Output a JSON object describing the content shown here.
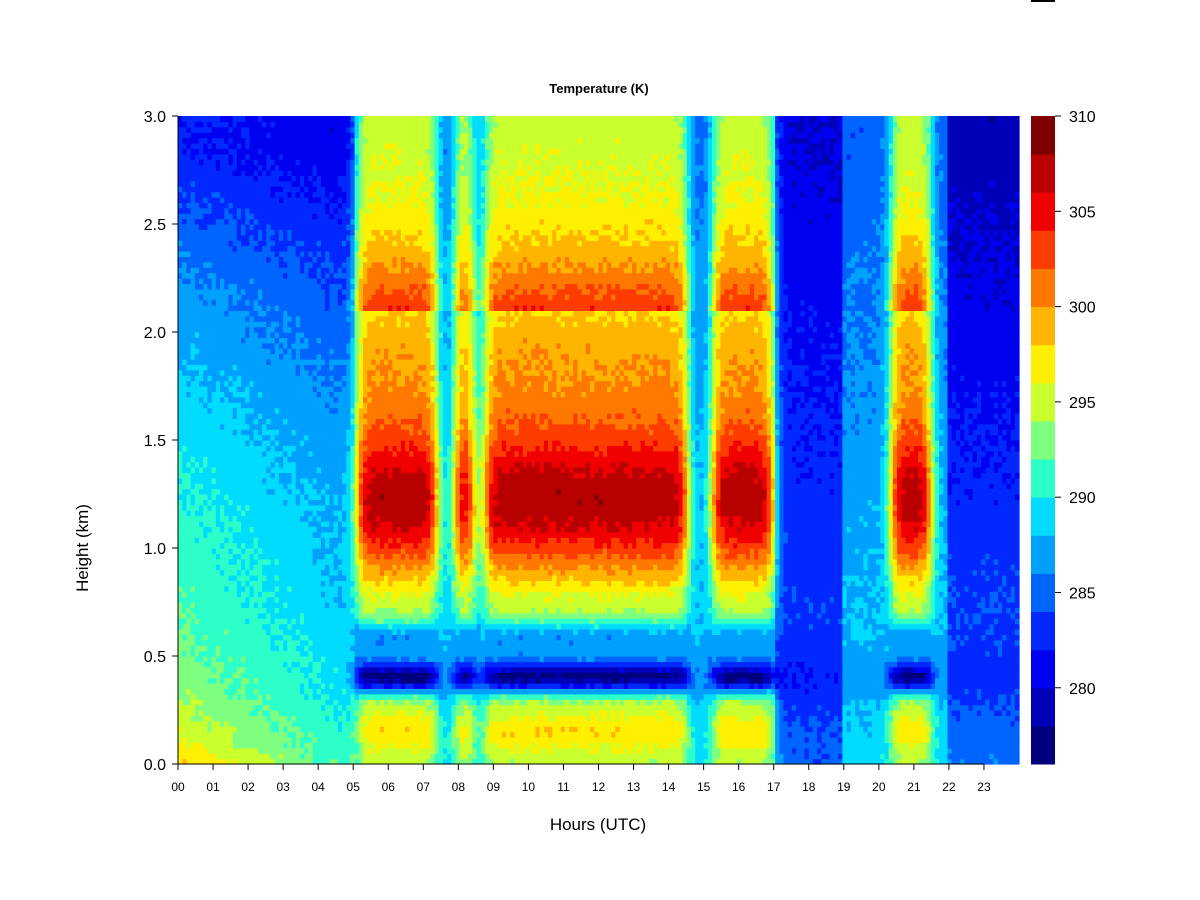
{
  "chart_data": {
    "type": "heatmap",
    "title": "Temperature (K)",
    "xlabel": "Hours (UTC)",
    "ylabel": "Height (km)",
    "xlim": [
      0,
      24
    ],
    "ylim": [
      0.0,
      3.0
    ],
    "x_tick_labels": [
      "00",
      "01",
      "02",
      "03",
      "04",
      "05",
      "06",
      "07",
      "08",
      "09",
      "10",
      "11",
      "12",
      "13",
      "14",
      "15",
      "16",
      "17",
      "18",
      "19",
      "20",
      "21",
      "22",
      "23"
    ],
    "y_tick_labels": [
      "0.0",
      "0.5",
      "1.0",
      "1.5",
      "2.0",
      "2.5",
      "3.0"
    ],
    "y_ticks": [
      0.0,
      0.5,
      1.0,
      1.5,
      2.0,
      2.5,
      3.0
    ],
    "colorbar": {
      "range": [
        276,
        310
      ],
      "levels": [
        276,
        278,
        280,
        282,
        284,
        286,
        288,
        290,
        292,
        294,
        296,
        298,
        300,
        302,
        304,
        306,
        308,
        310
      ],
      "tick_values": [
        280,
        285,
        290,
        295,
        300,
        305,
        310
      ],
      "tick_labels": [
        "280",
        "285",
        "290",
        "295",
        "300",
        "305",
        "310"
      ],
      "colors": [
        "#00007F",
        "#0000B8",
        "#0000F0",
        "#0028FF",
        "#0064FF",
        "#00A0FF",
        "#00DCFF",
        "#2DFFC9",
        "#7FFF7F",
        "#C9FF2D",
        "#FFF000",
        "#FFB400",
        "#FF7800",
        "#FF3C00",
        "#F00000",
        "#B80000",
        "#7F0000"
      ]
    }
  }
}
